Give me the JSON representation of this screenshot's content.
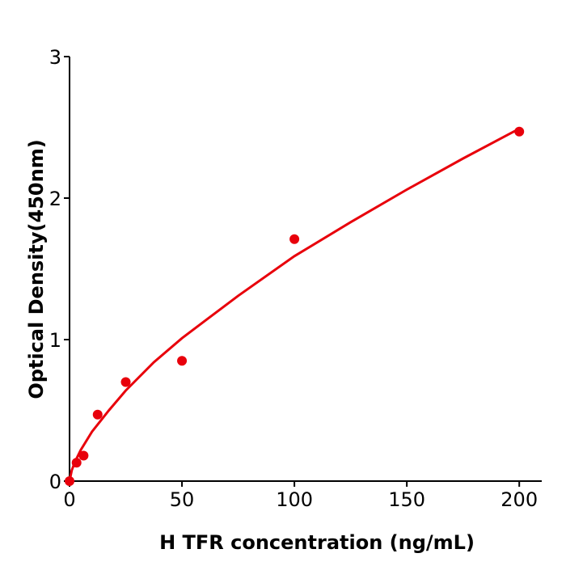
{
  "chart_data": {
    "type": "scatter",
    "title": "",
    "xlabel": "H  TFR concentration (ng/mL)",
    "ylabel": "Optical Density(450nm)",
    "xlim": [
      0,
      210
    ],
    "ylim": [
      0,
      3
    ],
    "xticks": [
      0,
      50,
      100,
      150,
      200
    ],
    "yticks": [
      0,
      1,
      2,
      3
    ],
    "grid": false,
    "color": "#e8000b",
    "points": [
      {
        "x": 0,
        "y": 0
      },
      {
        "x": 3.125,
        "y": 0.13
      },
      {
        "x": 6.25,
        "y": 0.18
      },
      {
        "x": 12.5,
        "y": 0.47
      },
      {
        "x": 25,
        "y": 0.7
      },
      {
        "x": 50,
        "y": 0.85
      },
      {
        "x": 100,
        "y": 1.71
      },
      {
        "x": 200,
        "y": 2.47
      }
    ],
    "fit_curve": [
      {
        "x": 0,
        "y": 0
      },
      {
        "x": 1,
        "y": 0.077
      },
      {
        "x": 2.5,
        "y": 0.14
      },
      {
        "x": 5,
        "y": 0.22
      },
      {
        "x": 10,
        "y": 0.35
      },
      {
        "x": 17.5,
        "y": 0.5
      },
      {
        "x": 25,
        "y": 0.64
      },
      {
        "x": 37.5,
        "y": 0.84
      },
      {
        "x": 50,
        "y": 1.01
      },
      {
        "x": 75,
        "y": 1.31
      },
      {
        "x": 100,
        "y": 1.59
      },
      {
        "x": 125,
        "y": 1.83
      },
      {
        "x": 150,
        "y": 2.06
      },
      {
        "x": 175,
        "y": 2.28
      },
      {
        "x": 200,
        "y": 2.49
      }
    ]
  }
}
